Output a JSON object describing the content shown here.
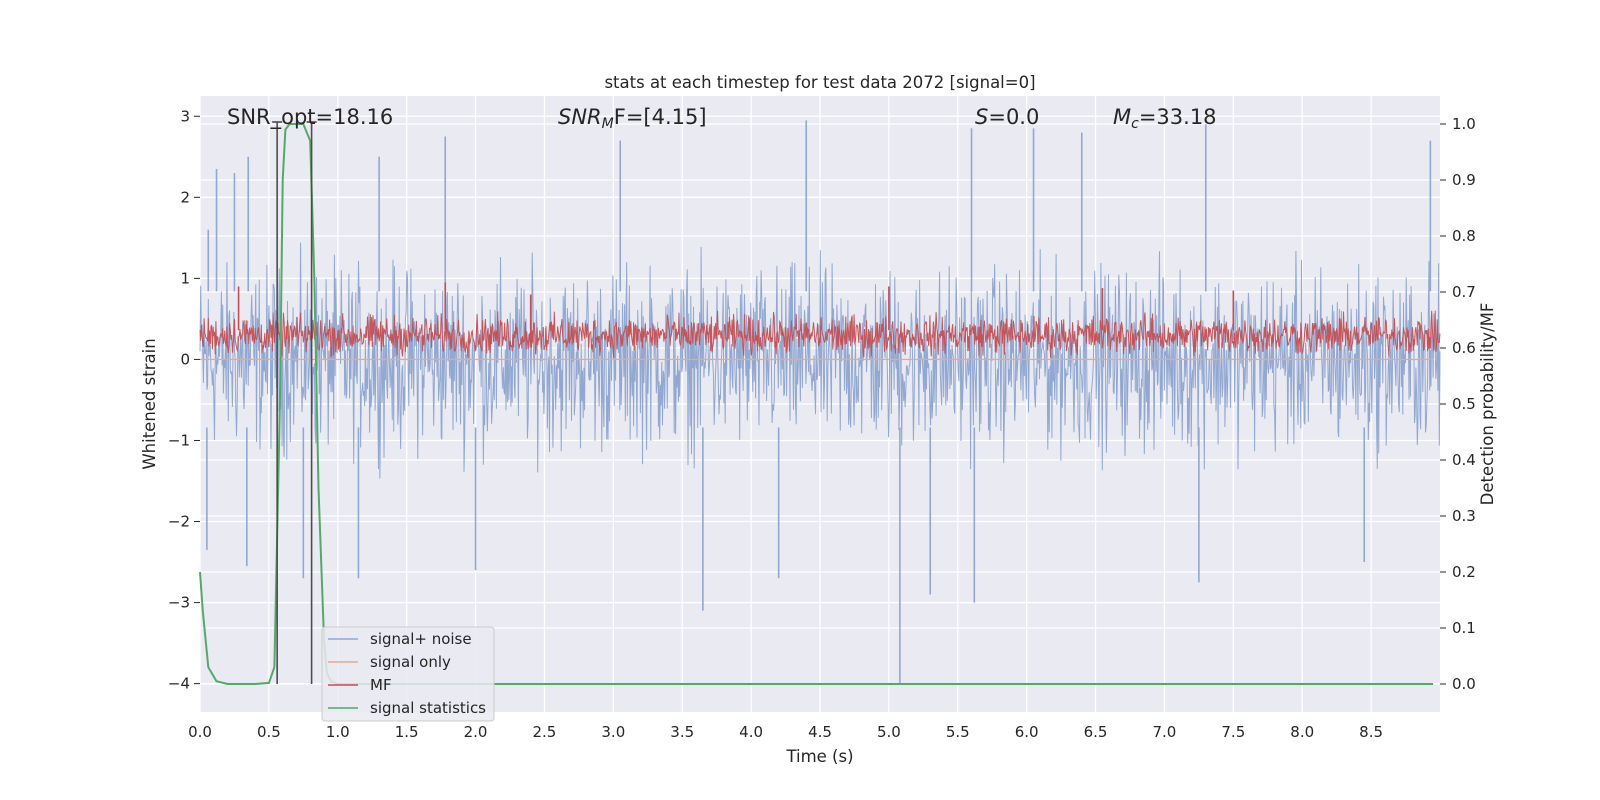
{
  "chart_data": {
    "type": "line",
    "title": "stats at each timestep for test data 2072 [signal=0]",
    "xlabel": "Time (s)",
    "ylabel": "Whitened strain",
    "y2label": "Detection probability/MF",
    "xlim": [
      0.0,
      9.0
    ],
    "ylim": [
      -4.35,
      3.25
    ],
    "y2lim": [
      -0.05,
      1.05
    ],
    "xticks": [
      "0.0",
      "0.5",
      "1.0",
      "1.5",
      "2.0",
      "2.5",
      "3.0",
      "3.5",
      "4.0",
      "4.5",
      "5.0",
      "5.5",
      "6.0",
      "6.5",
      "7.0",
      "7.5",
      "8.0",
      "8.5"
    ],
    "yticks": [
      "3",
      "2",
      "1",
      "0",
      "−1",
      "−2",
      "−3",
      "−4"
    ],
    "y2ticks": [
      "1.0",
      "0.9",
      "0.8",
      "0.7",
      "0.6",
      "0.5",
      "0.4",
      "0.3",
      "0.2",
      "0.1",
      "0.0"
    ],
    "grid": true,
    "legend_position": "lower-left",
    "annotations": {
      "snr_opt": "SNR_opt=18.16",
      "snr_mf_sym": "SNR",
      "snr_mf_sub": "M",
      "snr_mf_rest": "F=[4.15]",
      "s_sym": "S",
      "s_rest": "=0.0",
      "mc_sym": "M",
      "mc_sub": "c",
      "mc_rest": "=33.18"
    },
    "markers": [
      0.56,
      0.81
    ],
    "series": [
      {
        "name": "signal+ noise",
        "color": "#92a8d1",
        "axis": "left",
        "kind": "noise",
        "typical_band": [
          -1.4,
          1.4
        ],
        "peaks": [
          {
            "x": 0.06,
            "y": 1.6
          },
          {
            "x": 0.12,
            "y": 2.35
          },
          {
            "x": 0.25,
            "y": 2.3
          },
          {
            "x": 0.35,
            "y": 2.5
          },
          {
            "x": 1.3,
            "y": 2.5
          },
          {
            "x": 1.78,
            "y": 2.75
          },
          {
            "x": 3.05,
            "y": 2.7
          },
          {
            "x": 4.4,
            "y": 2.95
          },
          {
            "x": 5.6,
            "y": 2.85
          },
          {
            "x": 6.05,
            "y": 2.85
          },
          {
            "x": 6.4,
            "y": 2.8
          },
          {
            "x": 7.3,
            "y": 2.9
          },
          {
            "x": 8.93,
            "y": 2.7
          }
        ],
        "troughs": [
          {
            "x": 0.05,
            "y": -2.35
          },
          {
            "x": 0.34,
            "y": -2.55
          },
          {
            "x": 0.75,
            "y": -2.7
          },
          {
            "x": 1.15,
            "y": -2.7
          },
          {
            "x": 2.0,
            "y": -2.6
          },
          {
            "x": 3.65,
            "y": -3.1
          },
          {
            "x": 4.2,
            "y": -2.7
          },
          {
            "x": 5.08,
            "y": -4.0
          },
          {
            "x": 5.3,
            "y": -2.9
          },
          {
            "x": 5.62,
            "y": -3.0
          },
          {
            "x": 7.25,
            "y": -2.75
          },
          {
            "x": 8.45,
            "y": -2.5
          }
        ]
      },
      {
        "name": "signal only",
        "color": "#e8a98a",
        "axis": "left",
        "kind": "flat",
        "value": 0.0
      },
      {
        "name": "MF",
        "color": "#c44e52",
        "axis": "left",
        "kind": "noise",
        "typical_band": [
          0.0,
          0.6
        ],
        "peaks": [
          {
            "x": 0.28,
            "y": 0.9
          },
          {
            "x": 1.78,
            "y": 0.95
          },
          {
            "x": 2.4,
            "y": 0.8
          },
          {
            "x": 5.0,
            "y": 0.9
          },
          {
            "x": 6.55,
            "y": 0.88
          },
          {
            "x": 7.5,
            "y": 0.85
          }
        ],
        "troughs": []
      },
      {
        "name": "signal statistics",
        "color": "#55a868",
        "axis": "right",
        "kind": "line",
        "x": [
          0.0,
          0.02,
          0.06,
          0.12,
          0.2,
          0.3,
          0.4,
          0.5,
          0.54,
          0.58,
          0.6,
          0.62,
          0.65,
          0.7,
          0.75,
          0.8,
          0.83,
          0.86,
          0.9,
          0.92,
          0.95,
          1.0,
          2.0,
          4.0,
          6.0,
          8.0,
          8.95
        ],
        "y": [
          0.2,
          0.13,
          0.03,
          0.005,
          0.0,
          0.0,
          0.0,
          0.002,
          0.03,
          0.5,
          0.9,
          0.99,
          1.0,
          1.0,
          1.0,
          0.97,
          0.72,
          0.35,
          0.08,
          0.02,
          0.005,
          0.0,
          0.0,
          0.0,
          0.0,
          0.0,
          0.0
        ]
      }
    ]
  }
}
